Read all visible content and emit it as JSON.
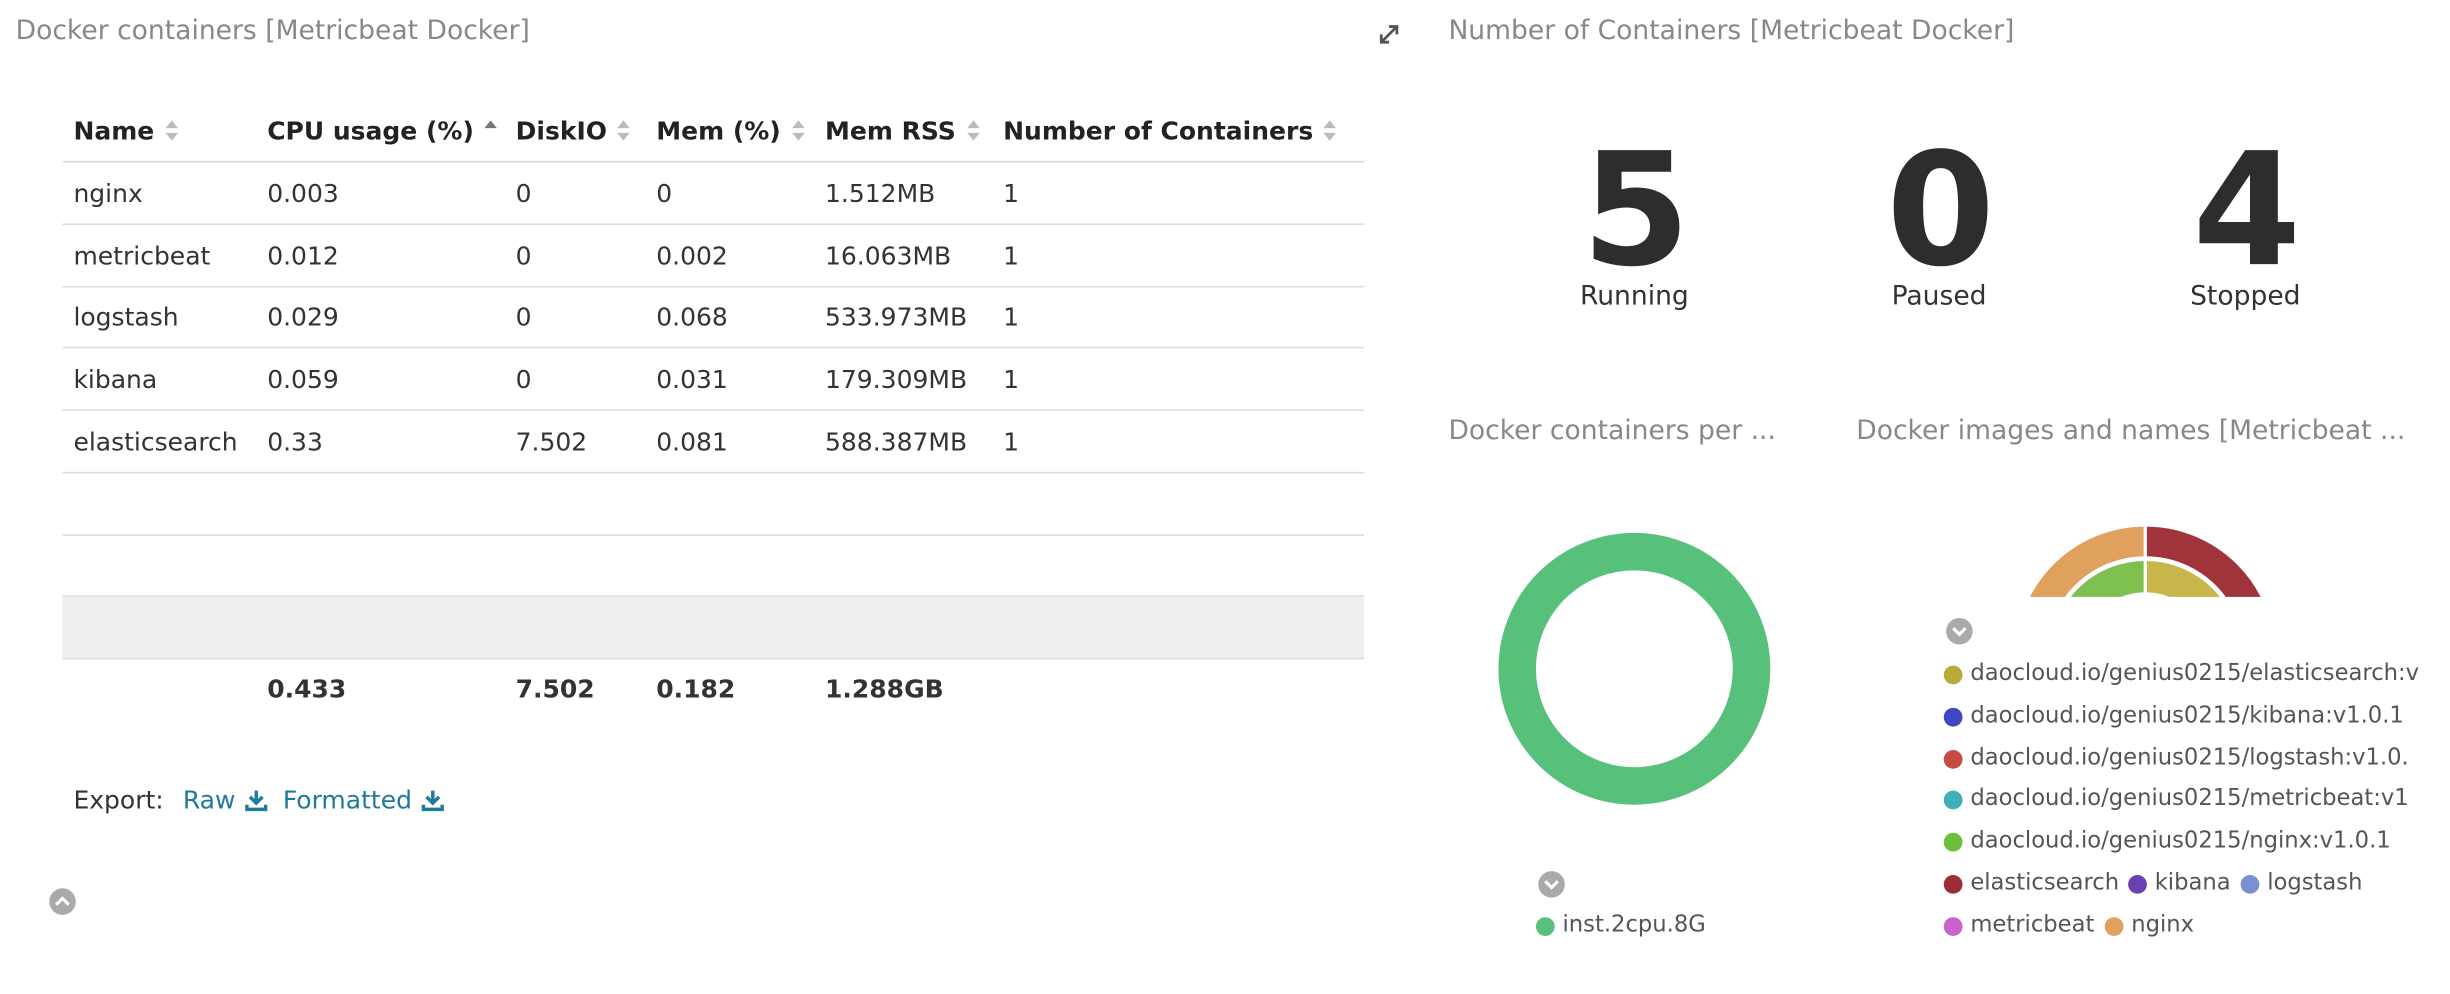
{
  "left_panel": {
    "title": "Docker containers [Metricbeat Docker]",
    "table": {
      "headers": [
        "Name",
        "CPU usage (%)",
        "DiskIO",
        "Mem (%)",
        "Mem RSS",
        "Number of Containers"
      ],
      "rows": [
        [
          "nginx",
          "0.003",
          "0",
          "0",
          "1.512MB",
          "1"
        ],
        [
          "metricbeat",
          "0.012",
          "0",
          "0.002",
          "16.063MB",
          "1"
        ],
        [
          "logstash",
          "0.029",
          "0",
          "0.068",
          "533.973MB",
          "1"
        ],
        [
          "kibana",
          "0.059",
          "0",
          "0.031",
          "179.309MB",
          "1"
        ],
        [
          "elasticsearch",
          "0.33",
          "7.502",
          "0.081",
          "588.387MB",
          "1"
        ]
      ],
      "totals": {
        "cpu": "0.433",
        "diskio": "7.502",
        "mem": "0.182",
        "mem_rss": "1.288GB"
      }
    },
    "export": {
      "label": "Export:",
      "raw": "Raw",
      "formatted": "Formatted"
    }
  },
  "right_panel": {
    "title": "Number of Containers [Metricbeat Docker]",
    "metrics": [
      {
        "value": 5,
        "label": "Running"
      },
      {
        "value": 0,
        "label": "Paused"
      },
      {
        "value": 4,
        "label": "Stopped"
      }
    ],
    "containers_per_host": {
      "title": "Docker containers per ...",
      "legend": [
        {
          "label": "inst.2cpu.8G",
          "color": "#57c17b"
        }
      ]
    },
    "images_and_names": {
      "title": "Docker images and names [Metricbeat ...",
      "legend": [
        {
          "label": "daocloud.io/genius0215/elasticsearch:v",
          "color": "#b9aa3a"
        },
        {
          "label": "daocloud.io/genius0215/kibana:v1.0.1",
          "color": "#3f48c0"
        },
        {
          "label": "daocloud.io/genius0215/logstash:v1.0.",
          "color": "#c94a42"
        },
        {
          "label": "daocloud.io/genius0215/metricbeat:v1",
          "color": "#3fb0b9"
        },
        {
          "label": "daocloud.io/genius0215/nginx:v1.0.1",
          "color": "#6cbf3a"
        },
        {
          "label": "elasticsearch",
          "color": "#9b2f35"
        },
        {
          "label": "kibana",
          "color": "#6a40b0"
        },
        {
          "label": "logstash",
          "color": "#7a8fd4"
        },
        {
          "label": "metricbeat",
          "color": "#c963c9"
        },
        {
          "label": "nginx",
          "color": "#e0a05e"
        }
      ]
    }
  }
}
